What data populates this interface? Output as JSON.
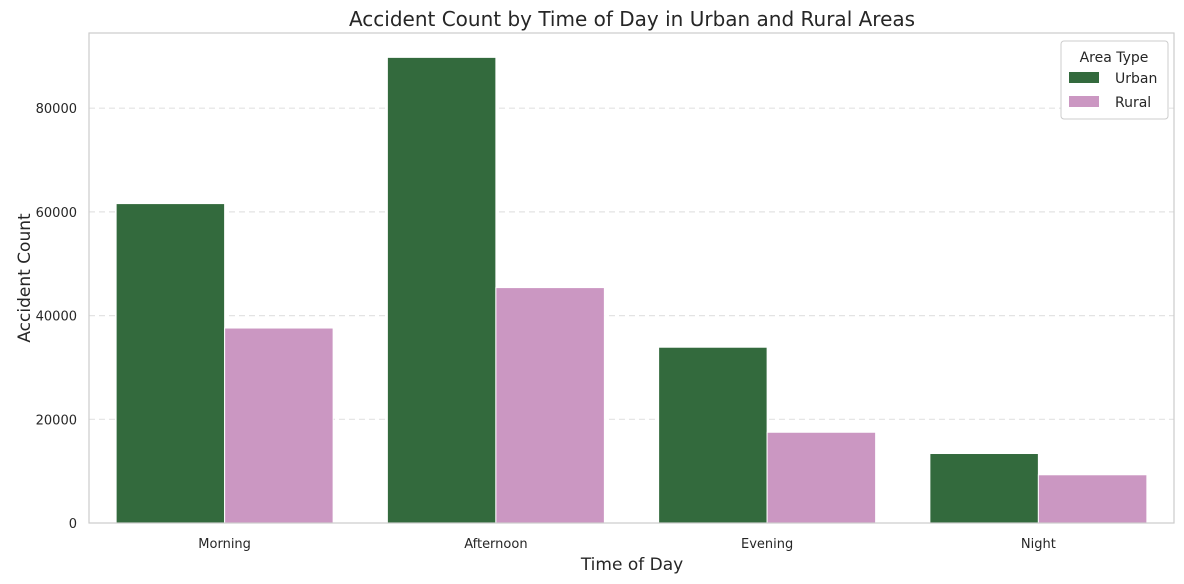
{
  "chart_data": {
    "type": "bar",
    "title": "Accident Count by Time of Day in Urban and Rural Areas",
    "xlabel": "Time of Day",
    "ylabel": "Accident Count",
    "categories": [
      "Morning",
      "Afternoon",
      "Evening",
      "Night"
    ],
    "series": [
      {
        "name": "Urban",
        "color": "#336a3d",
        "values": [
          61600,
          89800,
          33900,
          13400
        ]
      },
      {
        "name": "Rural",
        "color": "#cb97c2",
        "values": [
          37600,
          45400,
          17500,
          9300
        ]
      }
    ],
    "ylim": [
      0,
      94500
    ],
    "yticks": [
      0,
      20000,
      40000,
      60000,
      80000
    ],
    "ytick_labels": [
      "0",
      "20000",
      "40000",
      "60000",
      "80000"
    ],
    "grid": "y-dashed",
    "legend": {
      "title": "Area Type",
      "placement": "top-right"
    }
  }
}
